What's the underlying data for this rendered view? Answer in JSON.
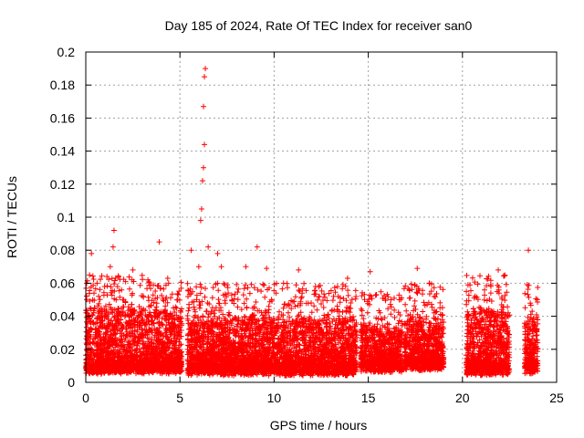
{
  "chart_data": {
    "type": "scatter",
    "title": "Day 185 of 2024, Rate Of TEC Index for receiver san0",
    "xlabel": "GPS time / hours",
    "ylabel": "ROTI / TECUs",
    "xlim": [
      0,
      25
    ],
    "ylim": [
      0,
      0.2
    ],
    "xticks": [
      "0",
      "5",
      "10",
      "15",
      "20",
      "25"
    ],
    "yticks": [
      "0",
      "0.02",
      "0.04",
      "0.06",
      "0.08",
      "0.1",
      "0.12",
      "0.14",
      "0.16",
      "0.18",
      "0.2"
    ],
    "grid": true,
    "marker": "+",
    "series_color": "#ff0000",
    "clusters": [
      {
        "start": 0.0,
        "end": 5.1,
        "base": 0.005,
        "typical_max": 0.04
      },
      {
        "start": 5.4,
        "end": 14.4,
        "base": 0.004,
        "typical_max": 0.035
      },
      {
        "start": 14.6,
        "end": 16.8,
        "base": 0.006,
        "typical_max": 0.03
      },
      {
        "start": 16.9,
        "end": 19.0,
        "base": 0.007,
        "typical_max": 0.035
      },
      {
        "start": 20.2,
        "end": 22.5,
        "base": 0.004,
        "typical_max": 0.04
      },
      {
        "start": 23.3,
        "end": 24.0,
        "base": 0.005,
        "typical_max": 0.035
      }
    ],
    "peaks": [
      {
        "x": 0.05,
        "y": 0.06
      },
      {
        "x": 0.2,
        "y": 0.065
      },
      {
        "x": 0.3,
        "y": 0.078
      },
      {
        "x": 0.6,
        "y": 0.06
      },
      {
        "x": 1.0,
        "y": 0.058
      },
      {
        "x": 1.3,
        "y": 0.07
      },
      {
        "x": 1.45,
        "y": 0.082
      },
      {
        "x": 1.5,
        "y": 0.092
      },
      {
        "x": 2.5,
        "y": 0.068
      },
      {
        "x": 3.3,
        "y": 0.062
      },
      {
        "x": 3.9,
        "y": 0.085
      },
      {
        "x": 4.4,
        "y": 0.06
      },
      {
        "x": 5.6,
        "y": 0.08
      },
      {
        "x": 6.0,
        "y": 0.07
      },
      {
        "x": 6.1,
        "y": 0.098
      },
      {
        "x": 6.15,
        "y": 0.105
      },
      {
        "x": 6.2,
        "y": 0.122
      },
      {
        "x": 6.25,
        "y": 0.13
      },
      {
        "x": 6.3,
        "y": 0.144
      },
      {
        "x": 6.25,
        "y": 0.167
      },
      {
        "x": 6.3,
        "y": 0.185
      },
      {
        "x": 6.35,
        "y": 0.19
      },
      {
        "x": 6.5,
        "y": 0.082
      },
      {
        "x": 7.0,
        "y": 0.078
      },
      {
        "x": 7.2,
        "y": 0.07
      },
      {
        "x": 8.5,
        "y": 0.07
      },
      {
        "x": 9.1,
        "y": 0.082
      },
      {
        "x": 9.6,
        "y": 0.069
      },
      {
        "x": 10.5,
        "y": 0.06
      },
      {
        "x": 11.3,
        "y": 0.068
      },
      {
        "x": 12.2,
        "y": 0.058
      },
      {
        "x": 13.9,
        "y": 0.063
      },
      {
        "x": 15.1,
        "y": 0.067
      },
      {
        "x": 16.2,
        "y": 0.05
      },
      {
        "x": 17.6,
        "y": 0.069
      },
      {
        "x": 18.5,
        "y": 0.052
      },
      {
        "x": 20.4,
        "y": 0.059
      },
      {
        "x": 21.9,
        "y": 0.068
      },
      {
        "x": 23.5,
        "y": 0.08
      },
      {
        "x": 23.7,
        "y": 0.043
      }
    ]
  }
}
